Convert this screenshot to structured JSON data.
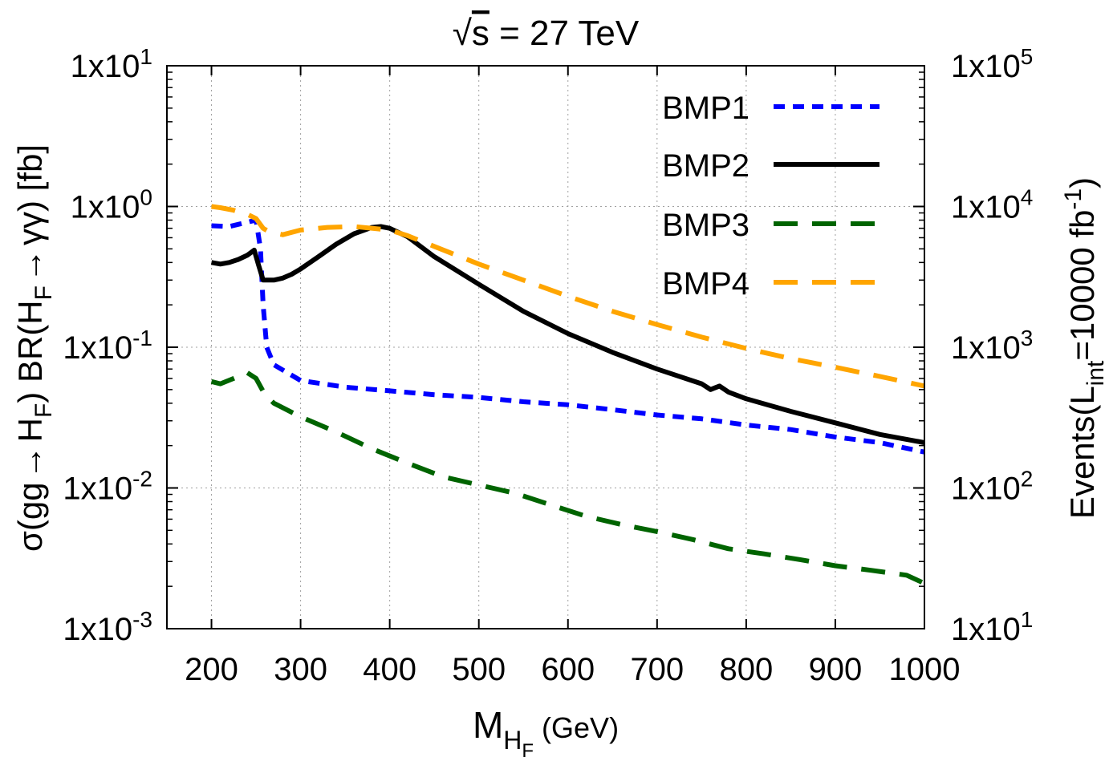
{
  "chart_data": {
    "type": "line",
    "title": "√s = 27 TeV",
    "title_parts": {
      "radical": "√",
      "symbol": "s",
      "rest": " = 27 TeV"
    },
    "xlabel": "M_{H_F} (GeV)",
    "xlabel_parts": {
      "main": "M",
      "sub1": "H",
      "sub2": "F",
      "unit": "(GeV)"
    },
    "ylabel": "σ(gg → H_F) BR(H_F → γγ) [fb]",
    "ylabel_parts": {
      "p1": "σ(gg",
      "arrow1": "→",
      "p2": "H",
      "sub1": "F",
      "p3": ") BR(H",
      "sub2": "F",
      "arrow2": "→",
      "p4": "γγ) [fb]"
    },
    "y2label": "Events(L_int=10000 fb^-1)",
    "y2label_parts": {
      "p1": "Events(L",
      "sub": "int",
      "p2": "=10000 fb",
      "sup": "-1",
      "p3": ")"
    },
    "xlim": [
      150,
      1000
    ],
    "ylim": [
      0.001,
      10
    ],
    "yscale": "log",
    "y2lim": [
      10,
      100000
    ],
    "xticks": [
      "200",
      "300",
      "400",
      "500",
      "600",
      "700",
      "800",
      "900",
      "1000"
    ],
    "xtick_values": [
      200,
      300,
      400,
      500,
      600,
      700,
      800,
      900,
      1000
    ],
    "yticks": [
      {
        "value": 10,
        "base": "1x10",
        "exp": "1"
      },
      {
        "value": 1,
        "base": "1x10",
        "exp": "0"
      },
      {
        "value": 0.1,
        "base": "1x10",
        "exp": "-1"
      },
      {
        "value": 0.01,
        "base": "1x10",
        "exp": "-2"
      },
      {
        "value": 0.001,
        "base": "1x10",
        "exp": "-3"
      }
    ],
    "y2ticks": [
      {
        "value": 100000,
        "base": "1x10",
        "exp": "5"
      },
      {
        "value": 10000,
        "base": "1x10",
        "exp": "4"
      },
      {
        "value": 1000,
        "base": "1x10",
        "exp": "3"
      },
      {
        "value": 100,
        "base": "1x10",
        "exp": "2"
      },
      {
        "value": 10,
        "base": "1x10",
        "exp": "1"
      }
    ],
    "grid": true,
    "legend_position": "top-right",
    "series": [
      {
        "name": "BMP1",
        "color": "#0000ff",
        "dash": "short",
        "x": [
          200,
          220,
          250,
          255,
          258,
          262,
          270,
          300,
          350,
          400,
          450,
          500,
          550,
          600,
          650,
          700,
          750,
          800,
          850,
          900,
          950,
          1000
        ],
        "y": [
          0.73,
          0.72,
          0.8,
          0.5,
          0.2,
          0.1,
          0.075,
          0.058,
          0.052,
          0.049,
          0.046,
          0.044,
          0.041,
          0.039,
          0.036,
          0.033,
          0.031,
          0.028,
          0.026,
          0.023,
          0.021,
          0.018
        ]
      },
      {
        "name": "BMP2",
        "color": "#000000",
        "dash": "solid",
        "x": [
          200,
          210,
          220,
          230,
          240,
          248,
          253,
          258,
          262,
          270,
          280,
          290,
          300,
          320,
          340,
          360,
          380,
          390,
          400,
          420,
          450,
          500,
          550,
          600,
          650,
          700,
          750,
          760,
          770,
          780,
          800,
          850,
          900,
          950,
          1000
        ],
        "y": [
          0.4,
          0.39,
          0.4,
          0.42,
          0.45,
          0.49,
          0.38,
          0.3,
          0.3,
          0.3,
          0.31,
          0.33,
          0.36,
          0.44,
          0.54,
          0.64,
          0.71,
          0.72,
          0.7,
          0.61,
          0.44,
          0.28,
          0.18,
          0.125,
          0.092,
          0.07,
          0.055,
          0.05,
          0.053,
          0.048,
          0.043,
          0.035,
          0.029,
          0.024,
          0.021
        ]
      },
      {
        "name": "BMP3",
        "color": "#006400",
        "dash": "long",
        "x": [
          200,
          210,
          225,
          240,
          250,
          260,
          270,
          300,
          340,
          380,
          420,
          460,
          500,
          540,
          580,
          620,
          660,
          700,
          740,
          780,
          820,
          860,
          900,
          940,
          980,
          1000
        ],
        "y": [
          0.057,
          0.055,
          0.06,
          0.066,
          0.06,
          0.046,
          0.04,
          0.032,
          0.025,
          0.019,
          0.015,
          0.012,
          0.0105,
          0.0092,
          0.0076,
          0.0063,
          0.0055,
          0.0049,
          0.0043,
          0.0037,
          0.0034,
          0.0031,
          0.0028,
          0.0026,
          0.0024,
          0.0021
        ]
      },
      {
        "name": "BMP4",
        "color": "#ffa500",
        "dash": "long",
        "x": [
          200,
          210,
          225,
          240,
          250,
          258,
          265,
          280,
          300,
          330,
          360,
          400,
          420,
          450,
          500,
          550,
          600,
          650,
          700,
          750,
          800,
          850,
          900,
          950,
          1000
        ],
        "y": [
          1.0,
          0.98,
          0.94,
          0.88,
          0.82,
          0.7,
          0.66,
          0.63,
          0.68,
          0.71,
          0.72,
          0.68,
          0.62,
          0.52,
          0.39,
          0.3,
          0.23,
          0.18,
          0.145,
          0.118,
          0.098,
          0.083,
          0.072,
          0.062,
          0.053
        ]
      }
    ]
  }
}
